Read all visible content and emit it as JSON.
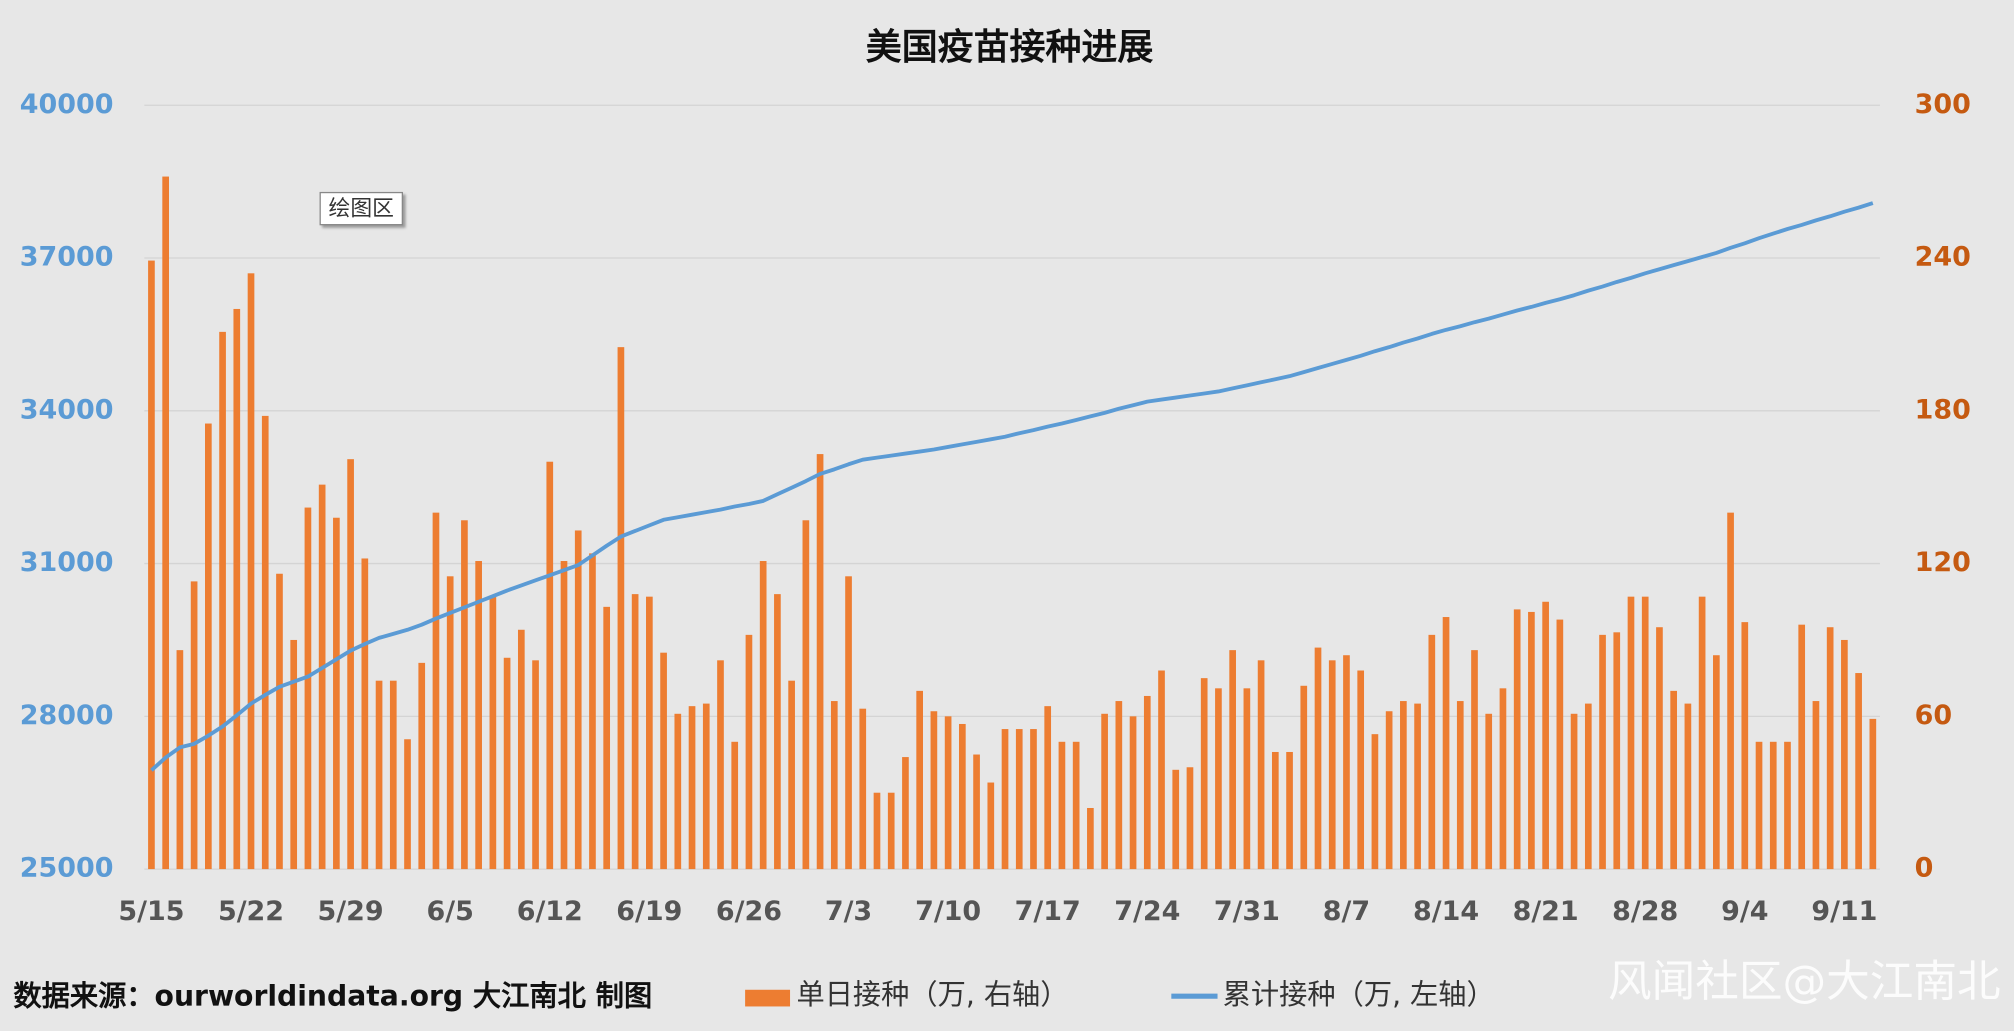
{
  "chart_data": {
    "type": "bar-line",
    "title": "美国疫苗接种进展",
    "annotation": "绘图区",
    "source": "数据来源：ourworldindata.org 大江南北 制图",
    "watermark": "风闻社区@大江南北",
    "categories": [
      "5/15",
      null,
      null,
      null,
      null,
      null,
      null,
      "5/22",
      null,
      null,
      null,
      null,
      null,
      null,
      "5/29",
      null,
      null,
      null,
      null,
      null,
      null,
      "6/5",
      null,
      null,
      null,
      null,
      null,
      null,
      "6/12",
      null,
      null,
      null,
      null,
      null,
      null,
      "6/19",
      null,
      null,
      null,
      null,
      null,
      null,
      "6/26",
      null,
      null,
      null,
      null,
      null,
      null,
      "7/3",
      null,
      null,
      null,
      null,
      null,
      null,
      "7/10",
      null,
      null,
      null,
      null,
      null,
      null,
      "7/17",
      null,
      null,
      null,
      null,
      null,
      null,
      "7/24",
      null,
      null,
      null,
      null,
      null,
      null,
      "7/31",
      null,
      null,
      null,
      null,
      null,
      null,
      "8/7",
      null,
      null,
      null,
      null,
      null,
      null,
      "8/14",
      null,
      null,
      null,
      null,
      null,
      null,
      "8/21",
      null,
      null,
      null,
      null,
      null,
      null,
      "8/28",
      null,
      null,
      null,
      null,
      null,
      null,
      "9/4",
      null,
      null,
      null,
      null,
      null,
      null,
      "9/11",
      null,
      null
    ],
    "series": [
      {
        "name": "单日接种（万, 右轴）",
        "type": "bar",
        "axis": "y2",
        "color": "#ed7d31",
        "values": [
          239,
          272,
          86,
          113,
          175,
          211,
          220,
          234,
          178,
          116,
          90,
          142,
          151,
          138,
          161,
          122,
          74,
          74,
          51,
          81,
          140,
          115,
          137,
          121,
          107,
          83,
          94,
          82,
          160,
          121,
          133,
          124,
          103,
          205,
          108,
          107,
          85,
          61,
          64,
          65,
          82,
          50,
          92,
          121,
          108,
          74,
          137,
          163,
          66,
          115,
          63,
          30,
          30,
          44,
          70,
          62,
          60,
          57,
          45,
          34,
          55,
          55,
          55,
          64,
          50,
          50,
          24,
          61,
          66,
          60,
          68,
          78,
          39,
          40,
          75,
          71,
          86,
          71,
          82,
          46,
          46,
          72,
          87,
          82,
          84,
          78,
          53,
          62,
          66,
          65,
          92,
          99,
          66,
          86,
          61,
          71,
          102,
          101,
          105,
          98,
          61,
          65,
          92,
          93,
          107,
          107,
          95,
          70,
          65,
          107,
          84,
          140,
          97,
          50,
          50,
          50,
          96,
          66,
          95,
          90,
          77,
          59
        ]
      },
      {
        "name": "累计接种（万, 左轴）",
        "type": "line",
        "axis": "y",
        "color": "#5b9bd5",
        "values": [
          26940,
          27190,
          27390,
          27460,
          27620,
          27800,
          28020,
          28250,
          28420,
          28580,
          28680,
          28780,
          28950,
          29120,
          29290,
          29420,
          29540,
          29620,
          29700,
          29800,
          29920,
          30030,
          30140,
          30250,
          30360,
          30470,
          30570,
          30670,
          30770,
          30870,
          30970,
          31160,
          31350,
          31530,
          31640,
          31750,
          31860,
          31910,
          31960,
          32010,
          32060,
          32120,
          32170,
          32230,
          32360,
          32490,
          32620,
          32760,
          32850,
          32950,
          33040,
          33080,
          33120,
          33160,
          33200,
          33240,
          33290,
          33340,
          33390,
          33440,
          33490,
          33560,
          33620,
          33690,
          33750,
          33820,
          33890,
          33960,
          34040,
          34110,
          34180,
          34220,
          34260,
          34300,
          34340,
          34380,
          34440,
          34500,
          34560,
          34620,
          34680,
          34760,
          34840,
          34920,
          35000,
          35080,
          35170,
          35250,
          35340,
          35420,
          35510,
          35590,
          35660,
          35740,
          35810,
          35890,
          35970,
          36040,
          36120,
          36190,
          36270,
          36360,
          36440,
          36530,
          36610,
          36700,
          36780,
          36860,
          36940,
          37020,
          37100,
          37200,
          37290,
          37390,
          37480,
          37570,
          37650,
          37740,
          37820,
          37910,
          37990,
          38080
        ]
      }
    ],
    "ylim": [
      25000,
      40000
    ],
    "yticks": [
      25000,
      28000,
      31000,
      34000,
      37000,
      40000
    ],
    "ycolor": "#5b9bd5",
    "y2lim": [
      0,
      300
    ],
    "y2ticks": [
      0,
      60,
      120,
      180,
      240,
      300
    ],
    "y2color": "#c55a11",
    "grid": true
  }
}
